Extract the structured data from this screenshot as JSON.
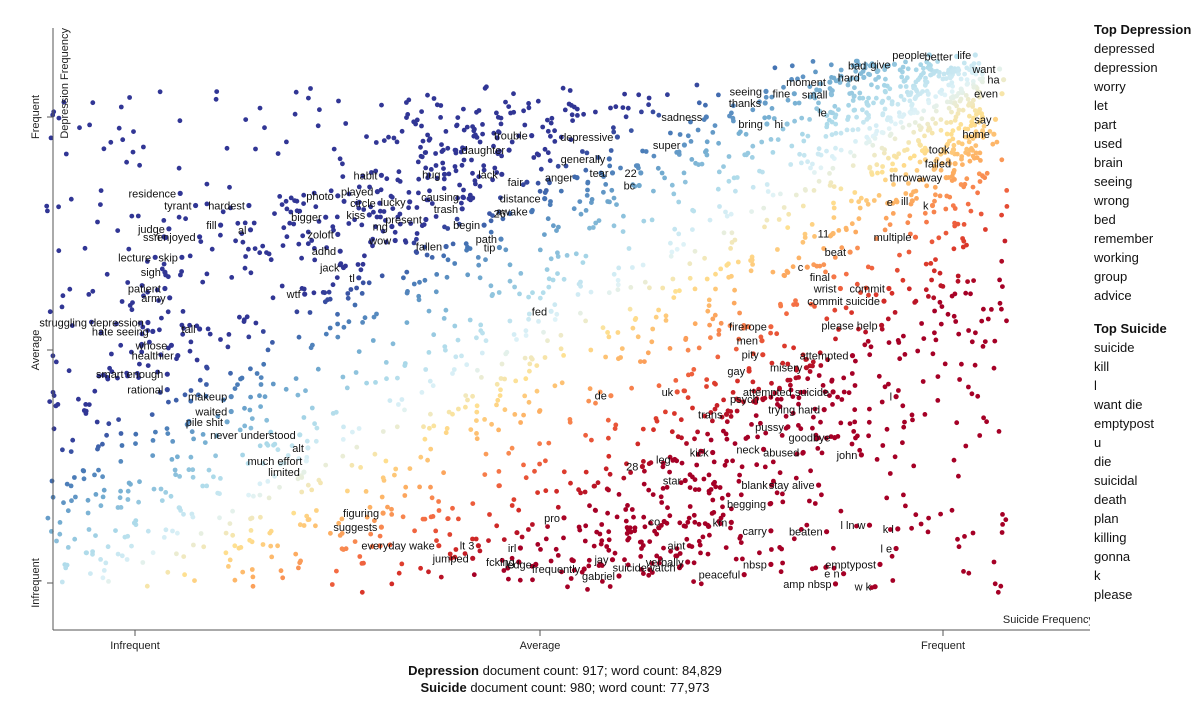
{
  "chart_data": {
    "type": "scatter",
    "title": "",
    "xlabel": "Suicide Frequency",
    "ylabel": "Depression Frequency",
    "x_ticks": [
      "Infrequent",
      "Average",
      "Frequent"
    ],
    "y_ticks": [
      "Infrequent",
      "Average",
      "Frequent"
    ],
    "xlim": [
      0,
      1
    ],
    "ylim": [
      0,
      1
    ],
    "color_scale": [
      "#313695",
      "#4575b4",
      "#74add1",
      "#abd9e9",
      "#e0f3f8",
      "#fee090",
      "#fdae61",
      "#f46d43",
      "#d73027",
      "#a50026"
    ],
    "labeled_terms": [
      {
        "term": "residence",
        "x": 0.056,
        "y": 0.836
      },
      {
        "term": "tyrant",
        "x": 0.075,
        "y": 0.81
      },
      {
        "term": "hardest",
        "x": 0.141,
        "y": 0.81
      },
      {
        "term": "judge",
        "x": 0.042,
        "y": 0.76
      },
      {
        "term": "ssri",
        "x": 0.036,
        "y": 0.743
      },
      {
        "term": "enjoyed",
        "x": 0.08,
        "y": 0.743
      },
      {
        "term": "fill",
        "x": 0.106,
        "y": 0.768
      },
      {
        "term": "al",
        "x": 0.143,
        "y": 0.758
      },
      {
        "term": "lecture",
        "x": 0.025,
        "y": 0.699
      },
      {
        "term": "skip",
        "x": 0.058,
        "y": 0.699
      },
      {
        "term": "sigh",
        "x": 0.037,
        "y": 0.667
      },
      {
        "term": "patient",
        "x": 0.037,
        "y": 0.632
      },
      {
        "term": "army",
        "x": 0.043,
        "y": 0.612
      },
      {
        "term": "struggling depression",
        "x": 0.016,
        "y": 0.559
      },
      {
        "term": "hate seeing",
        "x": 0.022,
        "y": 0.54
      },
      {
        "term": "tall",
        "x": 0.08,
        "y": 0.545
      },
      {
        "term": "whose",
        "x": 0.045,
        "y": 0.51
      },
      {
        "term": "healthier",
        "x": 0.053,
        "y": 0.488
      },
      {
        "term": "smart enough",
        "x": 0.04,
        "y": 0.448
      },
      {
        "term": "rational",
        "x": 0.04,
        "y": 0.415
      },
      {
        "term": "makeup",
        "x": 0.119,
        "y": 0.4
      },
      {
        "term": "waited",
        "x": 0.119,
        "y": 0.368
      },
      {
        "term": "pile shit",
        "x": 0.114,
        "y": 0.346
      },
      {
        "term": "never understood",
        "x": 0.204,
        "y": 0.318
      },
      {
        "term": "alt",
        "x": 0.214,
        "y": 0.29
      },
      {
        "term": "much effort",
        "x": 0.212,
        "y": 0.262
      },
      {
        "term": "limited",
        "x": 0.209,
        "y": 0.238
      },
      {
        "term": "wtf",
        "x": 0.21,
        "y": 0.62
      },
      {
        "term": "photo",
        "x": 0.251,
        "y": 0.831
      },
      {
        "term": "habit",
        "x": 0.305,
        "y": 0.875
      },
      {
        "term": "played",
        "x": 0.3,
        "y": 0.84
      },
      {
        "term": "circle",
        "x": 0.303,
        "y": 0.815
      },
      {
        "term": "lucky",
        "x": 0.34,
        "y": 0.818
      },
      {
        "term": "bigger",
        "x": 0.236,
        "y": 0.785
      },
      {
        "term": "kiss",
        "x": 0.29,
        "y": 0.79
      },
      {
        "term": "mg",
        "x": 0.318,
        "y": 0.765
      },
      {
        "term": "present",
        "x": 0.36,
        "y": 0.78
      },
      {
        "term": "zoloft",
        "x": 0.251,
        "y": 0.748
      },
      {
        "term": "wow",
        "x": 0.322,
        "y": 0.735
      },
      {
        "term": "adhd",
        "x": 0.254,
        "y": 0.712
      },
      {
        "term": "jack",
        "x": 0.258,
        "y": 0.677
      },
      {
        "term": "tl",
        "x": 0.277,
        "y": 0.655
      },
      {
        "term": "hug",
        "x": 0.383,
        "y": 0.877
      },
      {
        "term": "causing",
        "x": 0.406,
        "y": 0.828
      },
      {
        "term": "trash",
        "x": 0.405,
        "y": 0.803
      },
      {
        "term": "begin",
        "x": 0.432,
        "y": 0.768
      },
      {
        "term": "fallen",
        "x": 0.385,
        "y": 0.722
      },
      {
        "term": "path",
        "x": 0.453,
        "y": 0.738
      },
      {
        "term": "tip",
        "x": 0.451,
        "y": 0.72
      },
      {
        "term": "lack",
        "x": 0.454,
        "y": 0.877
      },
      {
        "term": "fair",
        "x": 0.485,
        "y": 0.86
      },
      {
        "term": "distance",
        "x": 0.507,
        "y": 0.825
      },
      {
        "term": "26",
        "x": 0.464,
        "y": 0.793
      },
      {
        "term": "awake",
        "x": 0.491,
        "y": 0.797
      },
      {
        "term": "trouble",
        "x": 0.491,
        "y": 0.96
      },
      {
        "term": "daughter",
        "x": 0.463,
        "y": 0.929
      },
      {
        "term": "anger",
        "x": 0.547,
        "y": 0.87
      },
      {
        "term": "generally",
        "x": 0.587,
        "y": 0.91
      },
      {
        "term": "tear",
        "x": 0.591,
        "y": 0.88
      },
      {
        "term": "22",
        "x": 0.626,
        "y": 0.88
      },
      {
        "term": "bc",
        "x": 0.624,
        "y": 0.853
      },
      {
        "term": "depressive",
        "x": 0.597,
        "y": 0.957
      },
      {
        "term": "sadness",
        "x": 0.707,
        "y": 1.0
      },
      {
        "term": "super",
        "x": 0.68,
        "y": 0.94
      },
      {
        "term": "seeing",
        "x": 0.781,
        "y": 1.055
      },
      {
        "term": "thanks",
        "x": 0.78,
        "y": 1.03
      },
      {
        "term": "fine",
        "x": 0.816,
        "y": 1.05
      },
      {
        "term": "bring",
        "x": 0.782,
        "y": 0.985
      },
      {
        "term": "hi",
        "x": 0.807,
        "y": 0.985
      },
      {
        "term": "moment",
        "x": 0.86,
        "y": 1.075
      },
      {
        "term": "small",
        "x": 0.862,
        "y": 1.048
      },
      {
        "term": "le",
        "x": 0.861,
        "y": 1.01
      },
      {
        "term": "bad",
        "x": 0.91,
        "y": 1.11
      },
      {
        "term": "hard",
        "x": 0.902,
        "y": 1.085
      },
      {
        "term": "give",
        "x": 0.94,
        "y": 1.113
      },
      {
        "term": "people",
        "x": 0.983,
        "y": 1.133
      },
      {
        "term": "better",
        "x": 1.017,
        "y": 1.13
      },
      {
        "term": "life",
        "x": 1.04,
        "y": 1.133
      },
      {
        "term": "want",
        "x": 1.07,
        "y": 1.103
      },
      {
        "term": "ha",
        "x": 1.075,
        "y": 1.08
      },
      {
        "term": "even",
        "x": 1.073,
        "y": 1.05
      },
      {
        "term": "say",
        "x": 1.065,
        "y": 0.995
      },
      {
        "term": "home",
        "x": 1.063,
        "y": 0.963
      },
      {
        "term": "took",
        "x": 1.013,
        "y": 0.93
      },
      {
        "term": "failed",
        "x": 1.015,
        "y": 0.9
      },
      {
        "term": "throwaway",
        "x": 1.004,
        "y": 0.87
      },
      {
        "term": "e",
        "x": 0.943,
        "y": 0.818
      },
      {
        "term": "ill",
        "x": 0.962,
        "y": 0.82
      },
      {
        "term": "k",
        "x": 0.987,
        "y": 0.81
      },
      {
        "term": "11",
        "x": 0.864,
        "y": 0.75
      },
      {
        "term": "beat",
        "x": 0.885,
        "y": 0.71
      },
      {
        "term": "multiple",
        "x": 0.966,
        "y": 0.742
      },
      {
        "term": "c",
        "x": 0.832,
        "y": 0.678
      },
      {
        "term": "final",
        "x": 0.865,
        "y": 0.657
      },
      {
        "term": "wrist",
        "x": 0.873,
        "y": 0.632
      },
      {
        "term": "commit",
        "x": 0.933,
        "y": 0.632
      },
      {
        "term": "commit suicide",
        "x": 0.927,
        "y": 0.605
      },
      {
        "term": "please help",
        "x": 0.924,
        "y": 0.553
      },
      {
        "term": "fed",
        "x": 0.515,
        "y": 0.583
      },
      {
        "term": "fire",
        "x": 0.759,
        "y": 0.55
      },
      {
        "term": "rope",
        "x": 0.787,
        "y": 0.55
      },
      {
        "term": "men",
        "x": 0.776,
        "y": 0.52
      },
      {
        "term": "pity",
        "x": 0.777,
        "y": 0.49
      },
      {
        "term": "attempted",
        "x": 0.888,
        "y": 0.488
      },
      {
        "term": "misery",
        "x": 0.831,
        "y": 0.462
      },
      {
        "term": "gay",
        "x": 0.76,
        "y": 0.455
      },
      {
        "term": "attempted suicide",
        "x": 0.864,
        "y": 0.41
      },
      {
        "term": "psych",
        "x": 0.777,
        "y": 0.395
      },
      {
        "term": "l",
        "x": 0.942,
        "y": 0.4
      },
      {
        "term": "trying hard",
        "x": 0.853,
        "y": 0.372
      },
      {
        "term": "trans",
        "x": 0.732,
        "y": 0.362
      },
      {
        "term": "uk",
        "x": 0.671,
        "y": 0.41
      },
      {
        "term": "de",
        "x": 0.589,
        "y": 0.402
      },
      {
        "term": "pussy",
        "x": 0.808,
        "y": 0.335
      },
      {
        "term": "goodbye",
        "x": 0.866,
        "y": 0.312
      },
      {
        "term": "neck",
        "x": 0.778,
        "y": 0.287
      },
      {
        "term": "abused",
        "x": 0.827,
        "y": 0.28
      },
      {
        "term": "john",
        "x": 0.899,
        "y": 0.275
      },
      {
        "term": "kick",
        "x": 0.715,
        "y": 0.28
      },
      {
        "term": "leg",
        "x": 0.668,
        "y": 0.265
      },
      {
        "term": "28",
        "x": 0.628,
        "y": 0.25
      },
      {
        "term": "star",
        "x": 0.681,
        "y": 0.22
      },
      {
        "term": "blank",
        "x": 0.788,
        "y": 0.21
      },
      {
        "term": "stay alive",
        "x": 0.846,
        "y": 0.21
      },
      {
        "term": "begging",
        "x": 0.786,
        "y": 0.17
      },
      {
        "term": "pro",
        "x": 0.531,
        "y": 0.14
      },
      {
        "term": "co",
        "x": 0.655,
        "y": 0.132
      },
      {
        "term": "km",
        "x": 0.738,
        "y": 0.13
      },
      {
        "term": "carry",
        "x": 0.787,
        "y": 0.112
      },
      {
        "term": "beaten",
        "x": 0.856,
        "y": 0.11
      },
      {
        "term": "l ln w",
        "x": 0.909,
        "y": 0.124
      },
      {
        "term": "k l",
        "x": 0.944,
        "y": 0.116
      },
      {
        "term": "l e",
        "x": 0.942,
        "y": 0.074
      },
      {
        "term": "aint",
        "x": 0.686,
        "y": 0.08
      },
      {
        "term": "verbally",
        "x": 0.684,
        "y": 0.045
      },
      {
        "term": "peaceful",
        "x": 0.754,
        "y": 0.018
      },
      {
        "term": "nbsp",
        "x": 0.787,
        "y": 0.04
      },
      {
        "term": "emptypost",
        "x": 0.922,
        "y": 0.04
      },
      {
        "term": "e n",
        "x": 0.877,
        "y": 0.02
      },
      {
        "term": "amp nbsp",
        "x": 0.867,
        "y": -0.002
      },
      {
        "term": "w k",
        "x": 0.916,
        "y": -0.008
      },
      {
        "term": "figuring",
        "x": 0.307,
        "y": 0.15
      },
      {
        "term": "suggests",
        "x": 0.305,
        "y": 0.12
      },
      {
        "term": "everyday wake",
        "x": 0.376,
        "y": 0.08
      },
      {
        "term": "lt 3",
        "x": 0.425,
        "y": 0.08
      },
      {
        "term": "jumped",
        "x": 0.418,
        "y": 0.053
      },
      {
        "term": "irl",
        "x": 0.477,
        "y": 0.075
      },
      {
        "term": "fcking",
        "x": 0.475,
        "y": 0.045
      },
      {
        "term": "ledge",
        "x": 0.496,
        "y": 0.04
      },
      {
        "term": "frequently",
        "x": 0.556,
        "y": 0.03
      },
      {
        "term": "jay",
        "x": 0.591,
        "y": 0.05
      },
      {
        "term": "gabriel",
        "x": 0.599,
        "y": 0.015
      },
      {
        "term": "suicidewatch",
        "x": 0.674,
        "y": 0.033
      }
    ]
  },
  "sidebar": {
    "depression_title": "Top Depression",
    "depression_terms": [
      "depressed",
      "depression",
      "worry",
      "let",
      "part",
      "used",
      "brain",
      "seeing",
      "wrong",
      "bed",
      "remember",
      "working",
      "group",
      "advice"
    ],
    "suicide_title": "Top Suicide",
    "suicide_terms": [
      "suicide",
      "kill",
      "l",
      "want die",
      "emptypost",
      "u",
      "die",
      "suicidal",
      "death",
      "plan",
      "killing",
      "gonna",
      "k",
      "please"
    ]
  },
  "footer": {
    "line1_category": "Depression",
    "line1_text": " document count: 917; word count: 84,829",
    "line2_category": "Suicide",
    "line2_text": " document count: 980; word count: 77,973"
  }
}
